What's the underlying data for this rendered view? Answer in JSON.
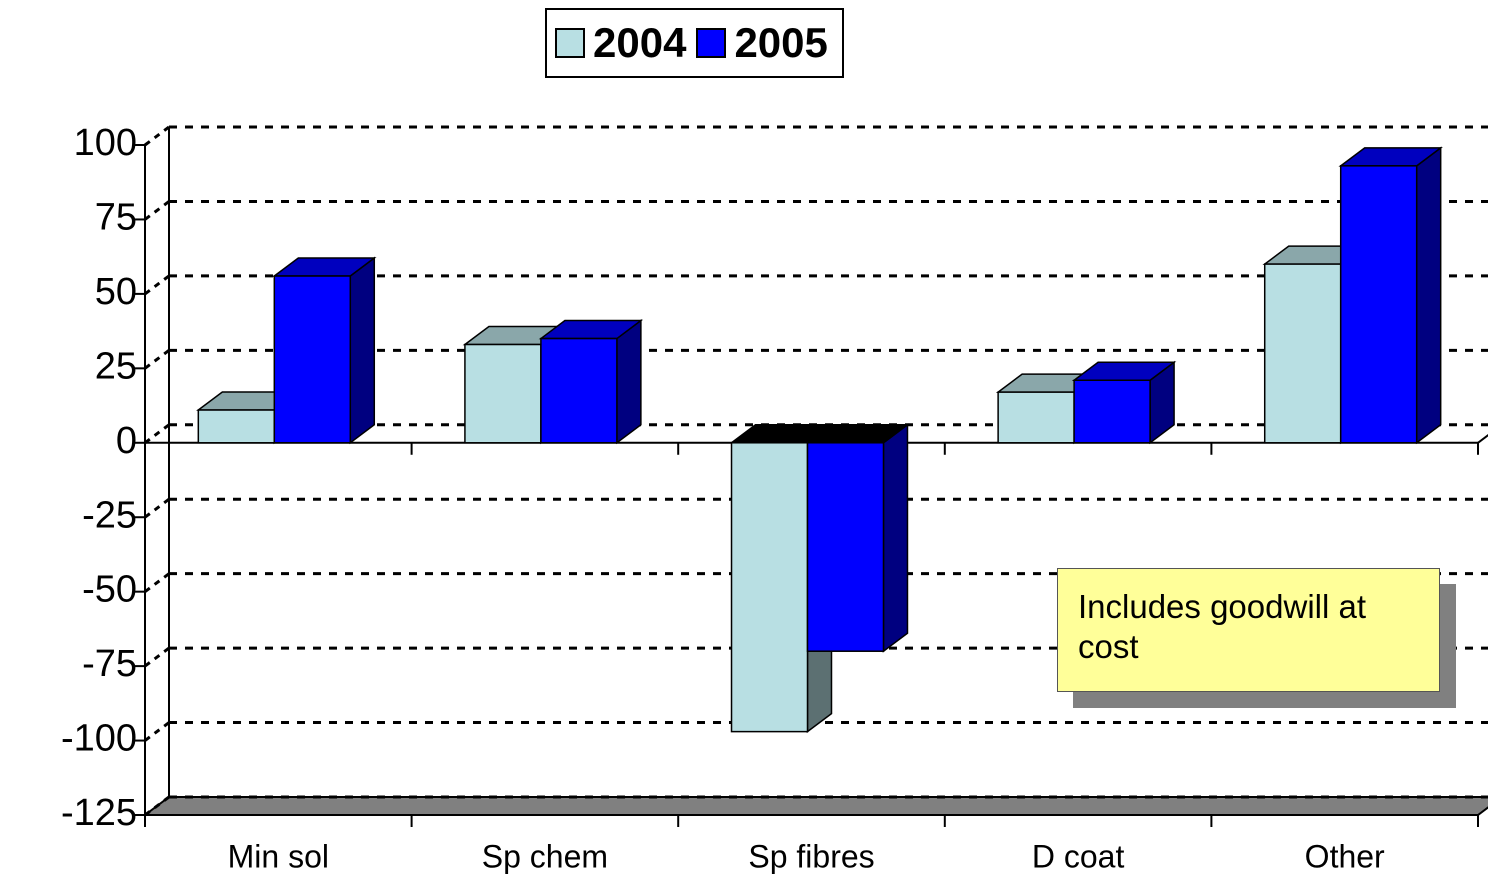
{
  "chart_data": {
    "type": "bar3d",
    "categories": [
      "Min sol",
      "Sp chem",
      "Sp fibres",
      "D coat",
      "Other"
    ],
    "series": [
      {
        "name": "2004",
        "color": "#b8dfe3",
        "values": [
          11,
          33,
          -97,
          17,
          60
        ]
      },
      {
        "name": "2005",
        "color": "#0000ff",
        "values": [
          56,
          35,
          -70,
          21,
          93
        ]
      }
    ],
    "ylim": [
      -125,
      100
    ],
    "yticks": [
      -125,
      -100,
      -75,
      -50,
      -25,
      0,
      25,
      50,
      75,
      100
    ],
    "grid": true,
    "legend": "top",
    "annotation": "Includes goodwill at cost"
  }
}
